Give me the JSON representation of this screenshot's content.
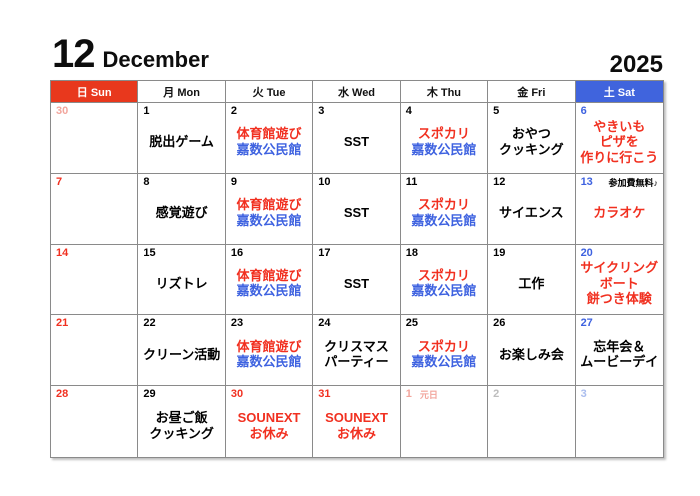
{
  "header": {
    "month_number": "12",
    "month_name": "December",
    "year": "2025"
  },
  "weekday_header": [
    {
      "label": "日 Sun",
      "style": "sun"
    },
    {
      "label": "月 Mon",
      "style": "weekday"
    },
    {
      "label": "火 Tue",
      "style": "weekday"
    },
    {
      "label": "水 Wed",
      "style": "weekday"
    },
    {
      "label": "木 Thu",
      "style": "weekday"
    },
    {
      "label": "金 Fri",
      "style": "weekday"
    },
    {
      "label": "土 Sat",
      "style": "sat"
    }
  ],
  "colors": {
    "red": "#f13020",
    "blue": "#3e62e0",
    "faded_red": "#f2a59c",
    "faded_gray": "#bdbdbd",
    "faded_blue": "#a9bcee",
    "sun_header_bg": "#e8381d",
    "sat_header_bg": "#4064dd",
    "grid_border": "#8a8a8a"
  },
  "weeks": [
    [
      {
        "date": "30",
        "date_color": "faded_red",
        "lines": []
      },
      {
        "date": "1",
        "date_color": "black",
        "lines": [
          {
            "text": "脱出ゲーム",
            "color": "black"
          }
        ]
      },
      {
        "date": "2",
        "date_color": "black",
        "lines": [
          {
            "text": "体育館遊び",
            "color": "red"
          },
          {
            "text": "嘉数公民館",
            "color": "blue"
          }
        ]
      },
      {
        "date": "3",
        "date_color": "black",
        "lines": [
          {
            "text": "SST",
            "color": "black"
          }
        ]
      },
      {
        "date": "4",
        "date_color": "black",
        "lines": [
          {
            "text": "スポカリ",
            "color": "red"
          },
          {
            "text": "嘉数公民館",
            "color": "blue"
          }
        ]
      },
      {
        "date": "5",
        "date_color": "black",
        "lines": [
          {
            "text": "おやつ",
            "color": "black"
          },
          {
            "text": "クッキング",
            "color": "black"
          }
        ]
      },
      {
        "date": "6",
        "date_color": "blue",
        "lines": [
          {
            "text": "やきいも",
            "color": "red"
          },
          {
            "text": "ピザを",
            "color": "red"
          },
          {
            "text": "作りに行こう",
            "color": "red"
          }
        ]
      }
    ],
    [
      {
        "date": "7",
        "date_color": "red",
        "lines": []
      },
      {
        "date": "8",
        "date_color": "black",
        "lines": [
          {
            "text": "感覚遊び",
            "color": "black"
          }
        ]
      },
      {
        "date": "9",
        "date_color": "black",
        "lines": [
          {
            "text": "体育館遊び",
            "color": "red"
          },
          {
            "text": "嘉数公民館",
            "color": "blue"
          }
        ]
      },
      {
        "date": "10",
        "date_color": "black",
        "lines": [
          {
            "text": "SST",
            "color": "black"
          }
        ]
      },
      {
        "date": "11",
        "date_color": "black",
        "lines": [
          {
            "text": "スポカリ",
            "color": "red"
          },
          {
            "text": "嘉数公民館",
            "color": "blue"
          }
        ]
      },
      {
        "date": "12",
        "date_color": "black",
        "lines": [
          {
            "text": "サイエンス",
            "color": "black"
          }
        ]
      },
      {
        "date": "13",
        "date_color": "blue",
        "note": {
          "text": "参加費無料♪",
          "color": "black",
          "align": "right"
        },
        "lines": [
          {
            "text": "カラオケ",
            "color": "red"
          }
        ]
      }
    ],
    [
      {
        "date": "14",
        "date_color": "red",
        "lines": []
      },
      {
        "date": "15",
        "date_color": "black",
        "lines": [
          {
            "text": "リズトレ",
            "color": "black"
          }
        ]
      },
      {
        "date": "16",
        "date_color": "black",
        "lines": [
          {
            "text": "体育館遊び",
            "color": "red"
          },
          {
            "text": "嘉数公民館",
            "color": "blue"
          }
        ]
      },
      {
        "date": "17",
        "date_color": "black",
        "lines": [
          {
            "text": "SST",
            "color": "black"
          }
        ]
      },
      {
        "date": "18",
        "date_color": "black",
        "lines": [
          {
            "text": "スポカリ",
            "color": "red"
          },
          {
            "text": "嘉数公民館",
            "color": "blue"
          }
        ]
      },
      {
        "date": "19",
        "date_color": "black",
        "lines": [
          {
            "text": "工作",
            "color": "black"
          }
        ]
      },
      {
        "date": "20",
        "date_color": "blue",
        "lines": [
          {
            "text": "サイクリング",
            "color": "red"
          },
          {
            "text": "ボート",
            "color": "red"
          },
          {
            "text": "餅つき体験",
            "color": "red"
          }
        ]
      }
    ],
    [
      {
        "date": "21",
        "date_color": "red",
        "lines": []
      },
      {
        "date": "22",
        "date_color": "black",
        "lines": [
          {
            "text": "クリーン活動",
            "color": "black"
          }
        ]
      },
      {
        "date": "23",
        "date_color": "black",
        "lines": [
          {
            "text": "体育館遊び",
            "color": "red"
          },
          {
            "text": "嘉数公民館",
            "color": "blue"
          }
        ]
      },
      {
        "date": "24",
        "date_color": "black",
        "lines": [
          {
            "text": "クリスマス",
            "color": "black"
          },
          {
            "text": "パーティー",
            "color": "black"
          }
        ]
      },
      {
        "date": "25",
        "date_color": "black",
        "lines": [
          {
            "text": "スポカリ",
            "color": "red"
          },
          {
            "text": "嘉数公民館",
            "color": "blue"
          }
        ]
      },
      {
        "date": "26",
        "date_color": "black",
        "lines": [
          {
            "text": "お楽しみ会",
            "color": "black"
          }
        ]
      },
      {
        "date": "27",
        "date_color": "blue",
        "lines": [
          {
            "text": "忘年会＆",
            "color": "black"
          },
          {
            "text": "ムービーデイ",
            "color": "black"
          }
        ]
      }
    ],
    [
      {
        "date": "28",
        "date_color": "red",
        "lines": []
      },
      {
        "date": "29",
        "date_color": "black",
        "lines": [
          {
            "text": "お昼ご飯",
            "color": "black"
          },
          {
            "text": "クッキング",
            "color": "black"
          }
        ]
      },
      {
        "date": "30",
        "date_color": "red",
        "lines": [
          {
            "text": "SOUNEXT",
            "color": "red"
          },
          {
            "text": "お休み",
            "color": "red"
          }
        ]
      },
      {
        "date": "31",
        "date_color": "red",
        "lines": [
          {
            "text": "SOUNEXT",
            "color": "red"
          },
          {
            "text": "お休み",
            "color": "red"
          }
        ]
      },
      {
        "date": "1",
        "date_color": "faded_red",
        "note": {
          "text": "元日",
          "color": "faded_red",
          "align": "left"
        },
        "lines": []
      },
      {
        "date": "2",
        "date_color": "faded_gray",
        "lines": []
      },
      {
        "date": "3",
        "date_color": "faded_blue",
        "lines": []
      }
    ]
  ]
}
